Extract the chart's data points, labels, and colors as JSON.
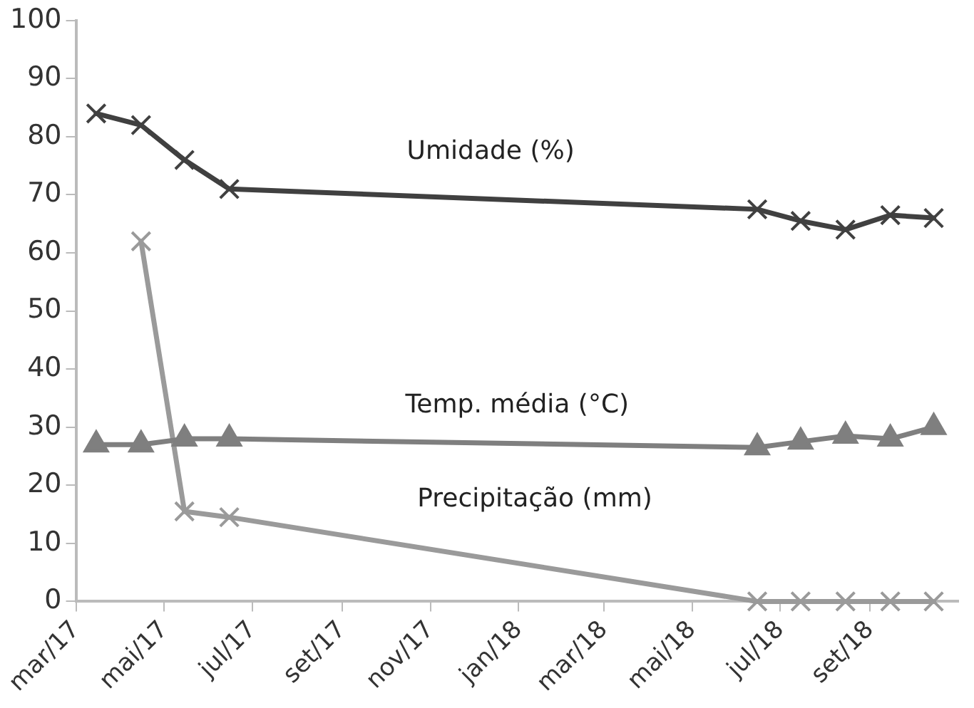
{
  "chart_data": {
    "type": "line",
    "x": [
      "2017-03-15",
      "2017-04-15",
      "2017-05-15",
      "2017-06-15",
      "2018-06-15",
      "2018-07-15",
      "2018-08-15",
      "2018-09-15",
      "2018-10-15"
    ],
    "series": [
      {
        "name": "Umidade (%)",
        "color": "#404040",
        "marker": "cross",
        "values": [
          84,
          82,
          76,
          71,
          67.5,
          65.5,
          64,
          66.5,
          66
        ]
      },
      {
        "name": "Temp. média (°C)",
        "color": "#7f7f7f",
        "marker": "triangle",
        "values": [
          27,
          27,
          28,
          28,
          26.5,
          27.5,
          28.5,
          28,
          30
        ]
      },
      {
        "name": "Precipitação (mm)",
        "color": "#9a9a9a",
        "marker": "cross",
        "values": [
          null,
          62,
          15.5,
          14.5,
          0,
          0,
          0,
          0,
          0
        ]
      }
    ],
    "xlim": [
      "2017-03-01",
      "2018-11-01"
    ],
    "xticks": [
      {
        "value": "2017-03-01",
        "label": "mar/17"
      },
      {
        "value": "2017-05-01",
        "label": "mai/17"
      },
      {
        "value": "2017-07-01",
        "label": "jul/17"
      },
      {
        "value": "2017-09-01",
        "label": "set/17"
      },
      {
        "value": "2017-11-01",
        "label": "nov/17"
      },
      {
        "value": "2018-01-01",
        "label": "jan/18"
      },
      {
        "value": "2018-03-01",
        "label": "mar/18"
      },
      {
        "value": "2018-05-01",
        "label": "mai/18"
      },
      {
        "value": "2018-07-01",
        "label": "jul/18"
      },
      {
        "value": "2018-09-01",
        "label": "set/18"
      }
    ],
    "ylim": [
      0,
      100
    ],
    "yticks": [
      0,
      10,
      20,
      30,
      40,
      50,
      60,
      70,
      80,
      90,
      100
    ],
    "grid": false,
    "legend": false,
    "line_style": "solid"
  }
}
